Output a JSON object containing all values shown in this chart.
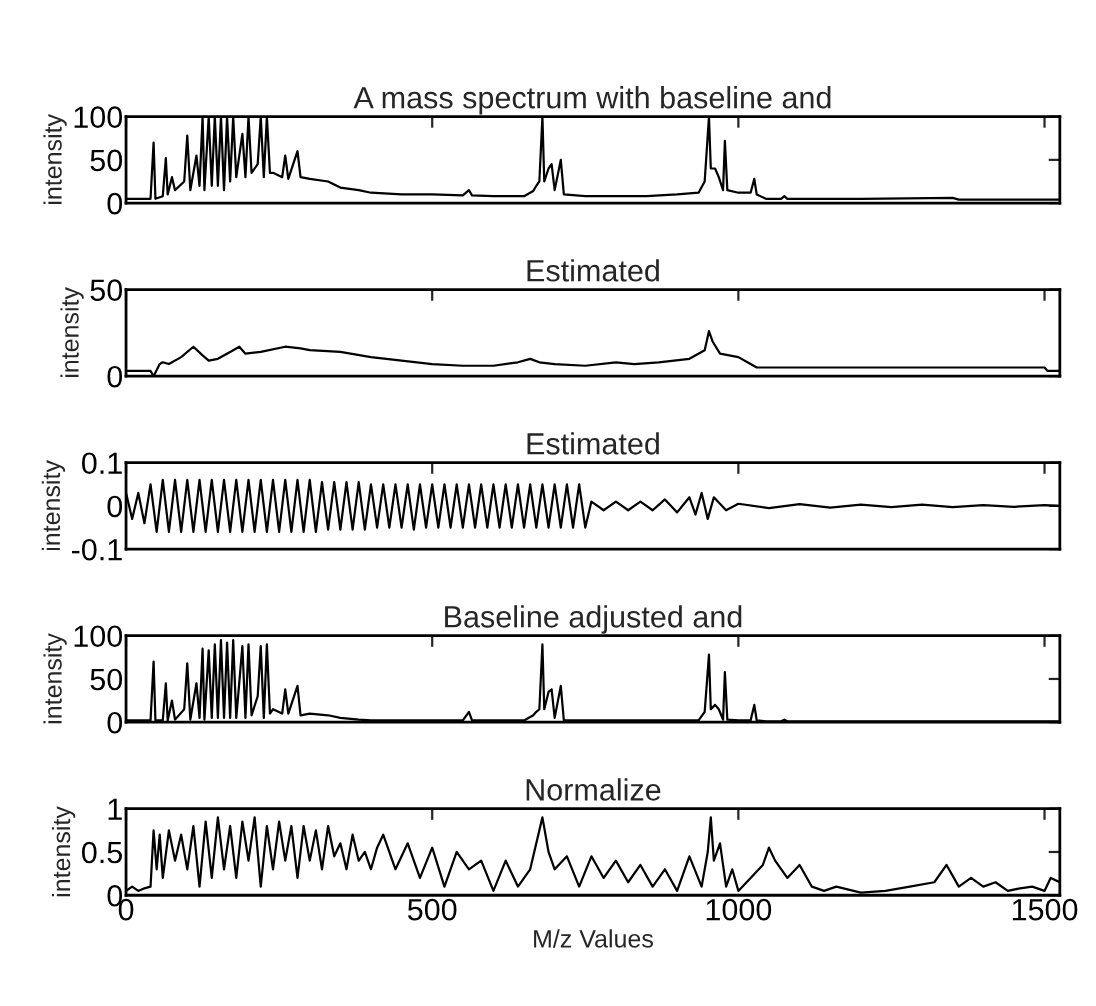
{
  "chart_data": [
    {
      "type": "line",
      "title": "A mass spectrum with baseline and",
      "ylabel": "intensity",
      "xlim": [
        0,
        1525
      ],
      "xticks": [
        0,
        500,
        1000,
        1500
      ],
      "ylim": [
        0,
        100
      ],
      "yticks": [
        0,
        50,
        100
      ],
      "tick_labels": "y",
      "grid": false,
      "legend": false,
      "series": [
        {
          "color": "#000000",
          "x": [
            0,
            40,
            45,
            48,
            60,
            65,
            68,
            75,
            80,
            95,
            100,
            105,
            115,
            120,
            125,
            128,
            135,
            140,
            145,
            150,
            155,
            160,
            165,
            170,
            175,
            180,
            190,
            195,
            200,
            205,
            215,
            220,
            225,
            230,
            235,
            240,
            255,
            260,
            265,
            280,
            285,
            300,
            330,
            350,
            380,
            400,
            450,
            500,
            550,
            560,
            565,
            600,
            650,
            665,
            670,
            675,
            680,
            683,
            690,
            695,
            700,
            710,
            715,
            750,
            800,
            850,
            900,
            935,
            945,
            952,
            955,
            962,
            968,
            975,
            978,
            982,
            1000,
            1020,
            1026,
            1030,
            1045,
            1070,
            1075,
            1080,
            1200,
            1350,
            1360,
            1525
          ],
          "values": [
            5,
            5,
            70,
            5,
            8,
            52,
            10,
            30,
            15,
            25,
            78,
            15,
            55,
            20,
            100,
            15,
            100,
            20,
            100,
            20,
            100,
            15,
            100,
            25,
            100,
            30,
            80,
            30,
            100,
            35,
            45,
            100,
            30,
            100,
            35,
            35,
            30,
            55,
            28,
            60,
            30,
            28,
            25,
            18,
            15,
            12,
            10,
            10,
            9,
            15,
            9,
            8,
            8,
            14,
            20,
            25,
            100,
            25,
            40,
            45,
            15,
            50,
            10,
            8,
            8,
            8,
            10,
            12,
            25,
            100,
            40,
            40,
            30,
            15,
            72,
            15,
            12,
            12,
            28,
            10,
            5,
            5,
            8,
            5,
            5,
            6,
            4,
            4
          ]
        }
      ]
    },
    {
      "type": "line",
      "title": "Estimated",
      "ylabel": "intensity",
      "xlim": [
        0,
        1525
      ],
      "xticks": [
        0,
        500,
        1000,
        1500
      ],
      "ylim": [
        0,
        50
      ],
      "yticks": [
        0,
        50
      ],
      "tick_labels": "y",
      "grid": false,
      "legend": false,
      "series": [
        {
          "color": "#000000",
          "x": [
            0,
            40,
            45,
            55,
            60,
            70,
            90,
            110,
            125,
            135,
            150,
            170,
            185,
            195,
            220,
            260,
            285,
            300,
            350,
            400,
            450,
            500,
            550,
            600,
            640,
            660,
            675,
            700,
            750,
            800,
            830,
            870,
            920,
            945,
            952,
            958,
            970,
            1000,
            1020,
            1030,
            1500,
            1505,
            1525
          ],
          "values": [
            3,
            3,
            0,
            7,
            8,
            7,
            11,
            17,
            12,
            9,
            10,
            14,
            17,
            13,
            14,
            17,
            16,
            15,
            14,
            11,
            9,
            7,
            6,
            6,
            8,
            10,
            8,
            7,
            6,
            8,
            7,
            8,
            10,
            15,
            26,
            20,
            13,
            11,
            7,
            5,
            5,
            3,
            3
          ]
        }
      ]
    },
    {
      "type": "line",
      "title": "Estimated",
      "ylabel": "intensity",
      "xlim": [
        0,
        1525
      ],
      "xticks": [
        0,
        500,
        1000,
        1500
      ],
      "ylim": [
        -0.1,
        0.1
      ],
      "yticks": [
        -0.1,
        0,
        0.1
      ],
      "tick_labels": "y",
      "grid": false,
      "legend": false,
      "series": [
        {
          "color": "#000000",
          "x": [
            0,
            10,
            20,
            30,
            40,
            50,
            60,
            70,
            80,
            90,
            100,
            110,
            120,
            130,
            140,
            150,
            160,
            170,
            180,
            190,
            200,
            210,
            220,
            230,
            240,
            250,
            260,
            270,
            280,
            290,
            300,
            310,
            320,
            330,
            340,
            350,
            360,
            370,
            380,
            390,
            400,
            410,
            420,
            430,
            440,
            450,
            460,
            470,
            480,
            490,
            500,
            510,
            520,
            530,
            540,
            550,
            560,
            570,
            580,
            590,
            600,
            610,
            620,
            630,
            640,
            650,
            660,
            670,
            680,
            690,
            700,
            710,
            720,
            730,
            740,
            750,
            760,
            780,
            800,
            820,
            840,
            860,
            880,
            900,
            920,
            930,
            940,
            950,
            960,
            980,
            1000,
            1050,
            1100,
            1150,
            1200,
            1250,
            1300,
            1350,
            1400,
            1450,
            1500,
            1525
          ],
          "values": [
            0.03,
            -0.03,
            0.03,
            -0.04,
            0.05,
            -0.06,
            0.06,
            -0.06,
            0.06,
            -0.06,
            0.06,
            -0.06,
            0.06,
            -0.06,
            0.06,
            -0.06,
            0.06,
            -0.06,
            0.06,
            -0.06,
            0.06,
            -0.06,
            0.06,
            -0.06,
            0.06,
            -0.06,
            0.06,
            -0.06,
            0.06,
            -0.06,
            0.06,
            -0.06,
            0.055,
            -0.055,
            0.055,
            -0.055,
            0.055,
            -0.055,
            0.055,
            -0.055,
            0.05,
            -0.05,
            0.05,
            -0.05,
            0.05,
            -0.05,
            0.05,
            -0.055,
            0.05,
            -0.05,
            0.05,
            -0.05,
            0.05,
            -0.05,
            0.05,
            -0.05,
            0.05,
            -0.05,
            0.05,
            -0.05,
            0.05,
            -0.05,
            0.05,
            -0.05,
            0.05,
            -0.05,
            0.05,
            -0.05,
            0.05,
            -0.05,
            0.05,
            -0.05,
            0.05,
            -0.05,
            0.05,
            -0.05,
            0.01,
            -0.01,
            0.01,
            -0.01,
            0.01,
            -0.01,
            0.015,
            -0.015,
            0.02,
            -0.02,
            0.03,
            -0.03,
            0.02,
            -0.01,
            0.005,
            -0.005,
            0.004,
            -0.004,
            0.003,
            -0.003,
            0.003,
            -0.003,
            0.002,
            -0.002,
            0.002,
            0
          ]
        }
      ]
    },
    {
      "type": "line",
      "title": "Baseline adjusted and",
      "ylabel": "intensity",
      "xlim": [
        0,
        1525
      ],
      "xticks": [
        0,
        500,
        1000,
        1500
      ],
      "ylim": [
        0,
        100
      ],
      "yticks": [
        0,
        50,
        100
      ],
      "tick_labels": "y",
      "grid": false,
      "legend": false,
      "series": [
        {
          "color": "#000000",
          "x": [
            0,
            40,
            45,
            48,
            60,
            65,
            68,
            75,
            80,
            95,
            100,
            105,
            115,
            120,
            125,
            128,
            135,
            140,
            145,
            150,
            155,
            160,
            165,
            170,
            175,
            180,
            190,
            195,
            200,
            205,
            215,
            220,
            225,
            230,
            235,
            240,
            255,
            260,
            265,
            280,
            285,
            300,
            330,
            350,
            380,
            400,
            450,
            500,
            550,
            560,
            565,
            600,
            650,
            665,
            670,
            675,
            680,
            683,
            690,
            695,
            700,
            710,
            715,
            750,
            800,
            850,
            900,
            935,
            945,
            952,
            955,
            962,
            968,
            975,
            978,
            982,
            1000,
            1020,
            1026,
            1030,
            1045,
            1070,
            1075,
            1080,
            1200,
            1350,
            1360,
            1525
          ],
          "values": [
            2,
            2,
            70,
            2,
            2,
            45,
            2,
            25,
            3,
            15,
            68,
            3,
            45,
            5,
            85,
            3,
            83,
            5,
            90,
            5,
            95,
            5,
            92,
            5,
            95,
            5,
            88,
            5,
            90,
            8,
            30,
            88,
            5,
            90,
            10,
            15,
            10,
            38,
            10,
            42,
            8,
            10,
            8,
            5,
            3,
            2,
            2,
            2,
            2,
            12,
            2,
            2,
            2,
            8,
            12,
            15,
            90,
            15,
            35,
            38,
            5,
            42,
            2,
            2,
            2,
            2,
            2,
            2,
            12,
            78,
            15,
            20,
            15,
            3,
            58,
            3,
            2,
            2,
            20,
            2,
            1,
            1,
            3,
            1,
            1,
            1,
            1,
            1
          ]
        }
      ]
    },
    {
      "type": "line",
      "title": "Normalize",
      "xlabel": "M/z Values",
      "ylabel": "intensity",
      "xlim": [
        0,
        1525
      ],
      "xticks": [
        0,
        500,
        1000,
        1500
      ],
      "ylim": [
        0,
        1
      ],
      "yticks": [
        0,
        0.5,
        1
      ],
      "grid": false,
      "legend": false,
      "series": [
        {
          "color": "#000000",
          "x": [
            0,
            10,
            20,
            30,
            40,
            45,
            50,
            55,
            60,
            70,
            80,
            90,
            100,
            110,
            120,
            130,
            140,
            150,
            160,
            170,
            180,
            190,
            200,
            210,
            220,
            230,
            240,
            250,
            260,
            270,
            280,
            290,
            300,
            310,
            320,
            330,
            340,
            350,
            360,
            370,
            380,
            390,
            400,
            410,
            420,
            440,
            460,
            480,
            500,
            520,
            540,
            560,
            580,
            600,
            620,
            640,
            660,
            670,
            680,
            690,
            700,
            720,
            740,
            760,
            780,
            800,
            820,
            840,
            860,
            880,
            900,
            920,
            940,
            950,
            955,
            960,
            970,
            980,
            990,
            1000,
            1020,
            1040,
            1050,
            1060,
            1080,
            1100,
            1120,
            1140,
            1160,
            1200,
            1240,
            1280,
            1320,
            1340,
            1360,
            1380,
            1400,
            1420,
            1440,
            1460,
            1480,
            1500,
            1510,
            1525
          ],
          "values": [
            0.05,
            0.1,
            0.05,
            0.08,
            0.1,
            0.75,
            0.3,
            0.7,
            0.2,
            0.75,
            0.4,
            0.7,
            0.3,
            0.8,
            0.1,
            0.85,
            0.2,
            0.9,
            0.3,
            0.8,
            0.2,
            0.85,
            0.4,
            0.9,
            0.1,
            0.8,
            0.3,
            0.85,
            0.4,
            0.8,
            0.2,
            0.8,
            0.4,
            0.75,
            0.3,
            0.8,
            0.45,
            0.6,
            0.3,
            0.7,
            0.4,
            0.5,
            0.3,
            0.55,
            0.7,
            0.3,
            0.6,
            0.2,
            0.55,
            0.1,
            0.5,
            0.3,
            0.4,
            0.05,
            0.4,
            0.1,
            0.3,
            0.6,
            0.9,
            0.5,
            0.3,
            0.45,
            0.1,
            0.45,
            0.2,
            0.4,
            0.15,
            0.35,
            0.1,
            0.3,
            0.05,
            0.45,
            0.1,
            0.5,
            0.9,
            0.4,
            0.6,
            0.1,
            0.3,
            0.05,
            0.2,
            0.35,
            0.55,
            0.4,
            0.2,
            0.35,
            0.1,
            0.05,
            0.1,
            0.03,
            0.05,
            0.1,
            0.15,
            0.35,
            0.1,
            0.2,
            0.1,
            0.15,
            0.05,
            0.08,
            0.1,
            0.05,
            0.2,
            0.15
          ]
        }
      ]
    }
  ]
}
